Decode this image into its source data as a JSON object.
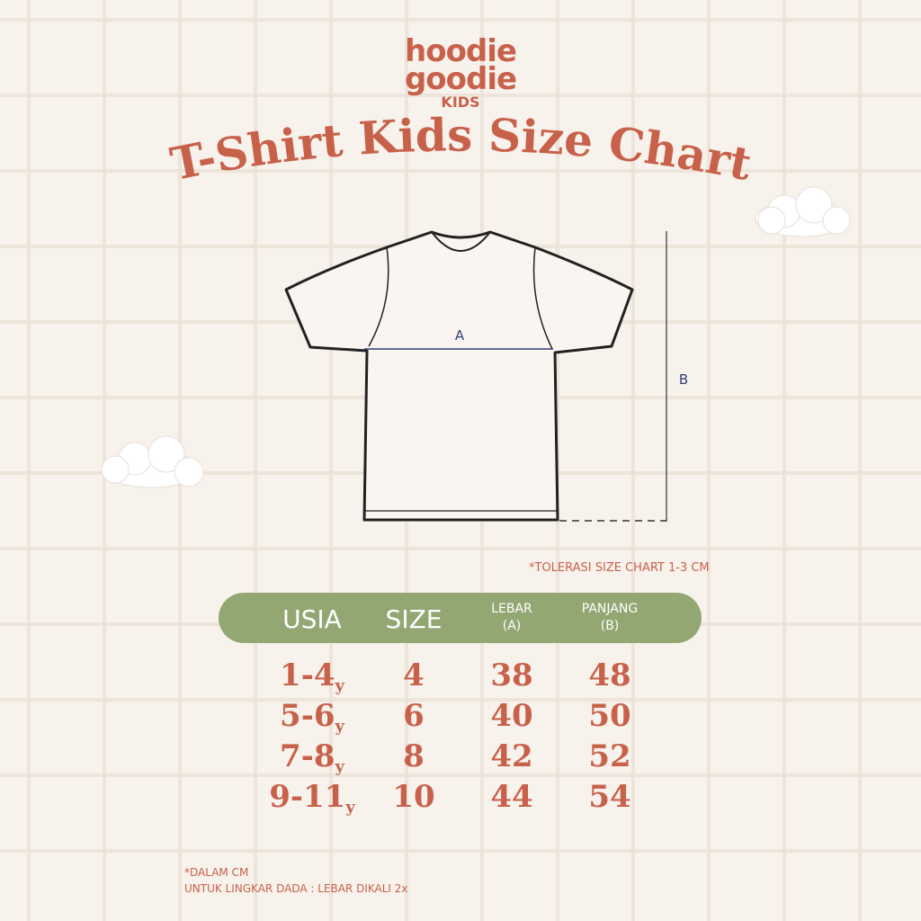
{
  "brand": {
    "line1": "hoodie",
    "line2": "goodie",
    "line3": "KIDS"
  },
  "title": "T-Shirt Kids Size Chart",
  "diagram": {
    "label_a": "A",
    "label_b": "B"
  },
  "tolerance": "*TOLERASI SIZE CHART 1-3 CM",
  "table": {
    "headers": {
      "usia": "USIA",
      "size": "SIZE",
      "lebar": "LEBAR",
      "lebar_sub": "(A)",
      "panjang": "PANJANG",
      "panjang_sub": "(B)"
    },
    "rows": [
      {
        "usia": "1-4",
        "unit": "y",
        "size": "4",
        "lebar": "38",
        "panjang": "48"
      },
      {
        "usia": "5-6",
        "unit": "y",
        "size": "6",
        "lebar": "40",
        "panjang": "50"
      },
      {
        "usia": "7-8",
        "unit": "y",
        "size": "8",
        "lebar": "42",
        "panjang": "52"
      },
      {
        "usia": "9-11",
        "unit": "y",
        "size": "10",
        "lebar": "44",
        "panjang": "54"
      }
    ]
  },
  "notes": {
    "line1": "*DALAM CM",
    "line2": "UNTUK LINGKAR DADA : LEBAR DIKALI 2x"
  },
  "colors": {
    "accent": "#c8614a",
    "header_bg": "#93a772",
    "background": "#f8f2ec"
  }
}
